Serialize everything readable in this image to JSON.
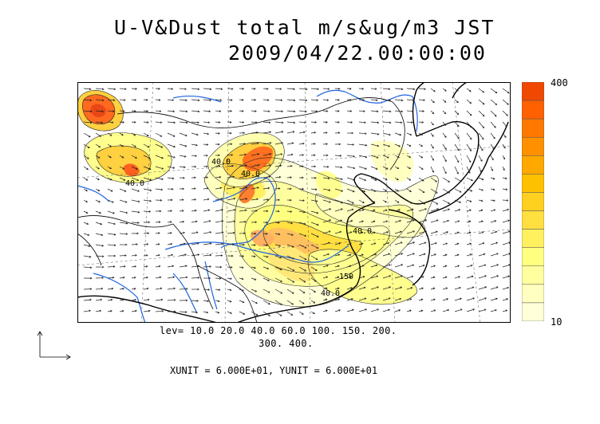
{
  "title": {
    "line1": "U-V&Dust total m/s&ug/m3 JST",
    "line2": "2009/04/22.00:00:00"
  },
  "colorbar": {
    "max_label": "400",
    "min_label": "10",
    "colors": [
      "#ffffd8",
      "#ffffc0",
      "#ffffa0",
      "#ffff80",
      "#fff060",
      "#ffe040",
      "#ffd020",
      "#ffc000",
      "#ffa800",
      "#ff9000",
      "#ff7800",
      "#ff6000",
      "#f04800"
    ]
  },
  "contour_legend": {
    "line1": "lev= 10.0 20.0 40.0 60.0 100. 150. 200.",
    "line2": "300. 400."
  },
  "units_note": "XUNIT = 6.000E+01, YUNIT = 6.000E+01",
  "map_labels": [
    "40.0",
    "40.0",
    "40.0",
    "150",
    "40.0",
    "40.0"
  ],
  "colors": {
    "coast": "#000000",
    "rivers": "#1f63e0",
    "arrows": "#222222"
  }
}
